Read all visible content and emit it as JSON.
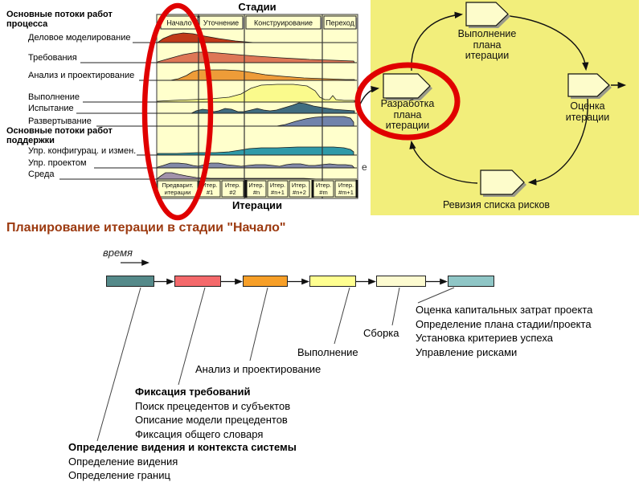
{
  "slide_title": "Планирование итерации в стадии \"Начало\"",
  "stray_letter": "е",
  "hump_chart": {
    "title": "Стадии",
    "x_axis_title": "Итерации",
    "process_group_label": "Основные потоки работ\nпроцесса",
    "support_group_label": "Основные потоки работ\nподдержки",
    "phases": [
      "Начало",
      "Уточнение",
      "Конструирование",
      "Переход"
    ],
    "iterations": [
      [
        "Предварит.",
        "итерации"
      ],
      [
        "Итер.",
        "#1"
      ],
      [
        "Итер.",
        "#2"
      ],
      [
        "Итер.",
        "#n"
      ],
      [
        "Итер.",
        "#n+1"
      ],
      [
        "Итер.",
        "#n+2"
      ],
      [
        "Итер.",
        "#m"
      ],
      [
        "Итер.",
        "#m+1"
      ]
    ],
    "panel_color": "#ffffcc",
    "highlight_color": "#e00000",
    "rows": [
      {
        "label": "Деловое моделирование",
        "color": "#c03a18",
        "hump": [
          [
            196,
            0
          ],
          [
            203,
            5
          ],
          [
            215,
            10
          ],
          [
            228,
            12
          ],
          [
            240,
            11
          ],
          [
            255,
            8
          ],
          [
            272,
            5
          ],
          [
            293,
            2
          ],
          [
            316,
            0
          ]
        ]
      },
      {
        "label": "Требования",
        "color": "#de7756",
        "hump": [
          [
            196,
            1
          ],
          [
            210,
            5
          ],
          [
            228,
            10
          ],
          [
            245,
            13
          ],
          [
            258,
            13
          ],
          [
            272,
            12
          ],
          [
            295,
            10
          ],
          [
            320,
            8
          ],
          [
            350,
            6
          ],
          [
            385,
            4
          ],
          [
            415,
            3
          ],
          [
            440,
            2
          ],
          [
            441,
            0
          ]
        ]
      },
      {
        "label": "Анализ и проектирование",
        "color": "#ee9c38",
        "hump": [
          [
            212,
            0
          ],
          [
            222,
            2
          ],
          [
            232,
            6
          ],
          [
            240,
            11
          ],
          [
            248,
            13
          ],
          [
            262,
            13
          ],
          [
            280,
            13
          ],
          [
            298,
            12
          ],
          [
            312,
            10
          ],
          [
            330,
            7
          ],
          [
            352,
            5
          ],
          [
            378,
            3
          ],
          [
            405,
            2
          ],
          [
            430,
            1
          ],
          [
            441,
            1
          ],
          [
            441,
            0
          ]
        ]
      },
      {
        "label": "Выполнение",
        "color": "#fafa8c",
        "hump": [
          [
            196,
            1
          ],
          [
            215,
            2
          ],
          [
            240,
            3
          ],
          [
            262,
            4
          ],
          [
            285,
            6
          ],
          [
            300,
            10
          ],
          [
            312,
            17
          ],
          [
            325,
            21
          ],
          [
            345,
            22
          ],
          [
            365,
            22
          ],
          [
            382,
            20
          ],
          [
            392,
            14
          ],
          [
            398,
            6
          ],
          [
            404,
            3
          ],
          [
            410,
            3
          ],
          [
            414,
            8
          ],
          [
            418,
            3
          ],
          [
            428,
            2
          ],
          [
            441,
            2
          ],
          [
            441,
            0
          ]
        ]
      },
      {
        "label": "Испытание",
        "color": "#416d80",
        "hump": [
          [
            196,
            0
          ],
          [
            238,
            0
          ],
          [
            244,
            3
          ],
          [
            252,
            5
          ],
          [
            260,
            4
          ],
          [
            266,
            2
          ],
          [
            272,
            3
          ],
          [
            280,
            6
          ],
          [
            288,
            5
          ],
          [
            296,
            2
          ],
          [
            303,
            2
          ],
          [
            312,
            4
          ],
          [
            320,
            6
          ],
          [
            328,
            4
          ],
          [
            336,
            3
          ],
          [
            344,
            4
          ],
          [
            354,
            7
          ],
          [
            364,
            10
          ],
          [
            372,
            13
          ],
          [
            380,
            12
          ],
          [
            390,
            9
          ],
          [
            402,
            7
          ],
          [
            415,
            5
          ],
          [
            428,
            4
          ],
          [
            441,
            3
          ],
          [
            441,
            0
          ]
        ]
      },
      {
        "label": "Развертывание",
        "color": "#7183ab",
        "hump": [
          [
            344,
            0
          ],
          [
            355,
            2
          ],
          [
            368,
            6
          ],
          [
            380,
            9
          ],
          [
            392,
            11
          ],
          [
            405,
            12
          ],
          [
            418,
            12
          ],
          [
            428,
            12
          ],
          [
            436,
            10
          ],
          [
            440,
            5
          ],
          [
            440,
            0
          ]
        ]
      },
      {
        "label": "Упр. конфигурац. и измен.",
        "color": "#2f9aa8",
        "hump": [
          [
            196,
            2
          ],
          [
            220,
            2
          ],
          [
            245,
            3
          ],
          [
            268,
            3
          ],
          [
            285,
            4
          ],
          [
            298,
            6
          ],
          [
            310,
            8
          ],
          [
            325,
            9
          ],
          [
            345,
            9
          ],
          [
            370,
            10
          ],
          [
            395,
            10
          ],
          [
            415,
            10
          ],
          [
            428,
            9
          ],
          [
            436,
            7
          ],
          [
            440,
            4
          ],
          [
            440,
            0
          ]
        ]
      },
      {
        "label": "Упр. проектом",
        "color": "#8289a8",
        "hump": [
          [
            196,
            1
          ],
          [
            203,
            3
          ],
          [
            212,
            6
          ],
          [
            222,
            6
          ],
          [
            232,
            5
          ],
          [
            240,
            3
          ],
          [
            247,
            2
          ],
          [
            254,
            4
          ],
          [
            262,
            6
          ],
          [
            272,
            6
          ],
          [
            282,
            4
          ],
          [
            292,
            3
          ],
          [
            300,
            2
          ],
          [
            308,
            3
          ],
          [
            318,
            4
          ],
          [
            330,
            4
          ],
          [
            340,
            3
          ],
          [
            348,
            2
          ],
          [
            356,
            4
          ],
          [
            364,
            5
          ],
          [
            374,
            5
          ],
          [
            384,
            3
          ],
          [
            392,
            3
          ],
          [
            400,
            4
          ],
          [
            410,
            5
          ],
          [
            420,
            4
          ],
          [
            430,
            4
          ],
          [
            438,
            3
          ],
          [
            441,
            0
          ]
        ]
      },
      {
        "label": "Среда",
        "color": "#a292aa",
        "hump": [
          [
            196,
            1
          ],
          [
            200,
            4
          ],
          [
            206,
            8
          ],
          [
            214,
            8
          ],
          [
            222,
            6
          ],
          [
            232,
            4
          ],
          [
            244,
            2
          ],
          [
            262,
            1
          ],
          [
            290,
            1
          ],
          [
            320,
            1
          ],
          [
            350,
            1
          ],
          [
            378,
            1
          ],
          [
            395,
            0
          ]
        ]
      }
    ]
  },
  "cycle": {
    "background": "#f2ee7b",
    "node_fill": "#fdfccb",
    "highlight_color": "#e00000",
    "nodes": [
      {
        "id": "execute",
        "label": "Выполнение\nплана\nитерации"
      },
      {
        "id": "assess",
        "label": "Оценка\nитерации"
      },
      {
        "id": "revise",
        "label": "Ревизия списка рисков"
      },
      {
        "id": "plan",
        "label": "Разработка\nплана\nитерации",
        "highlighted": true
      }
    ]
  },
  "timeline": {
    "time_label": "время",
    "boxes": [
      "#558a8a",
      "#f4696b",
      "#f79f28",
      "#ffff90",
      "#fdfbd0",
      "#8fc6c6"
    ],
    "annotations": [
      {
        "heading": "Определение видения и контекста системы",
        "lines": [
          "Определение видения",
          "Определение границ"
        ]
      },
      {
        "heading": "Фиксация требований",
        "lines": [
          "Поиск прецедентов и субъектов",
          "Описание модели прецедентов",
          "Фиксация общего словаря"
        ]
      },
      {
        "heading": "",
        "lines": [
          "Анализ и проектирование"
        ]
      },
      {
        "heading": "",
        "lines": [
          "Выполнение"
        ]
      },
      {
        "heading": "",
        "lines": [
          "Сборка"
        ]
      },
      {
        "heading": "",
        "lines": [
          "Оценка капитальных затрат проекта",
          "Определение плана стадии/проекта",
          "Установка критериев успеха",
          "Управление рисками"
        ]
      }
    ]
  }
}
